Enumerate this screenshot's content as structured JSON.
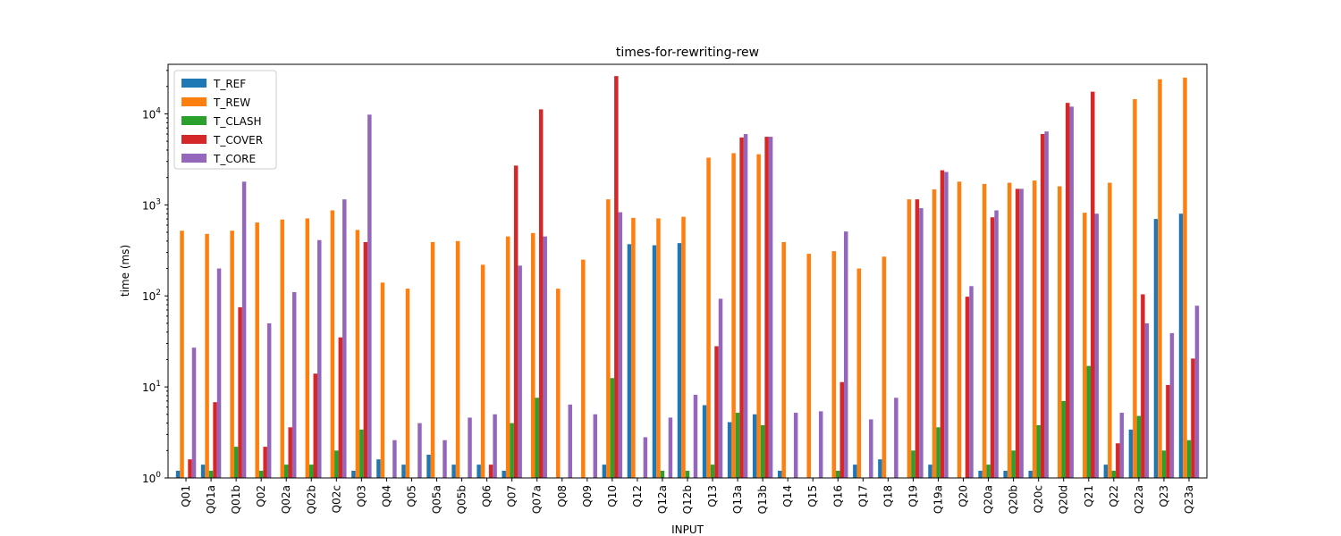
{
  "chart_data": {
    "type": "bar",
    "title": "times-for-rewriting-rew",
    "xlabel": "INPUT",
    "ylabel": "time (ms)",
    "yscale": "log",
    "ylim": [
      1,
      35000
    ],
    "ytick_values": [
      1,
      10,
      100,
      1000,
      10000
    ],
    "ytick_labels": [
      {
        "base": "10",
        "exp": "0"
      },
      {
        "base": "10",
        "exp": "1"
      },
      {
        "base": "10",
        "exp": "2"
      },
      {
        "base": "10",
        "exp": "3"
      },
      {
        "base": "10",
        "exp": "4"
      }
    ],
    "grid": false,
    "legend_position": "top-left",
    "categories": [
      "Q01",
      "Q01a",
      "Q01b",
      "Q02",
      "Q02a",
      "Q02b",
      "Q02c",
      "Q03",
      "Q04",
      "Q05",
      "Q05a",
      "Q05b",
      "Q06",
      "Q07",
      "Q07a",
      "Q08",
      "Q09",
      "Q10",
      "Q12",
      "Q12a",
      "Q12b",
      "Q13",
      "Q13a",
      "Q13b",
      "Q14",
      "Q15",
      "Q16",
      "Q17",
      "Q18",
      "Q19",
      "Q19a",
      "Q20",
      "Q20a",
      "Q20b",
      "Q20c",
      "Q20d",
      "Q21",
      "Q22",
      "Q22a",
      "Q23",
      "Q23a"
    ],
    "series": [
      {
        "name": "T_REF",
        "color": "#1f77b4",
        "values": [
          1.2,
          1.4,
          null,
          null,
          null,
          null,
          null,
          1.2,
          1.6,
          1.4,
          1.8,
          1.4,
          1.4,
          1.2,
          null,
          null,
          null,
          1.4,
          370,
          360,
          380,
          6.3,
          4.1,
          5.0,
          1.2,
          null,
          null,
          1.4,
          1.6,
          null,
          1.4,
          null,
          1.2,
          1.2,
          1.2,
          null,
          null,
          1.4,
          3.4,
          700,
          800
        ]
      },
      {
        "name": "T_REW",
        "color": "#ff7f0e",
        "values": [
          520,
          480,
          520,
          640,
          690,
          710,
          870,
          530,
          140,
          120,
          390,
          400,
          220,
          450,
          490,
          120,
          250,
          1150,
          720,
          710,
          740,
          3300,
          3700,
          3600,
          390,
          290,
          310,
          200,
          270,
          1150,
          1480,
          1800,
          1700,
          1750,
          1850,
          1600,
          820,
          1750,
          14500,
          24000,
          25000
        ]
      },
      {
        "name": "T_CLASH",
        "color": "#2ca02c",
        "values": [
          null,
          1.2,
          2.2,
          1.2,
          1.4,
          1.4,
          2.0,
          3.4,
          null,
          null,
          null,
          null,
          null,
          4.0,
          7.6,
          null,
          null,
          12.5,
          null,
          1.2,
          1.2,
          1.4,
          5.2,
          3.8,
          null,
          null,
          1.2,
          null,
          null,
          2.0,
          3.6,
          null,
          1.4,
          2.0,
          3.8,
          7.0,
          17.0,
          1.2,
          4.8,
          2.0,
          2.6
        ]
      },
      {
        "name": "T_COVER",
        "color": "#d62728",
        "values": [
          1.6,
          6.8,
          75,
          2.2,
          3.6,
          14,
          35,
          390,
          null,
          null,
          null,
          null,
          1.4,
          2700,
          11200,
          null,
          null,
          26000,
          null,
          null,
          null,
          28,
          5500,
          5600,
          null,
          null,
          11.3,
          null,
          null,
          1150,
          2400,
          98,
          730,
          1500,
          6000,
          13200,
          17500,
          2.4,
          104,
          10.5,
          20.5
        ]
      },
      {
        "name": "T_CORE",
        "color": "#9467bd",
        "values": [
          27,
          200,
          1800,
          50,
          110,
          410,
          1150,
          9800,
          2.6,
          4.0,
          2.6,
          4.6,
          5.0,
          215,
          450,
          6.4,
          5.0,
          830,
          2.8,
          4.6,
          8.2,
          93,
          6000,
          5600,
          5.2,
          5.4,
          510,
          4.4,
          7.6,
          920,
          2300,
          128,
          870,
          1500,
          6400,
          12000,
          800,
          5.2,
          50,
          39,
          78
        ]
      }
    ]
  }
}
